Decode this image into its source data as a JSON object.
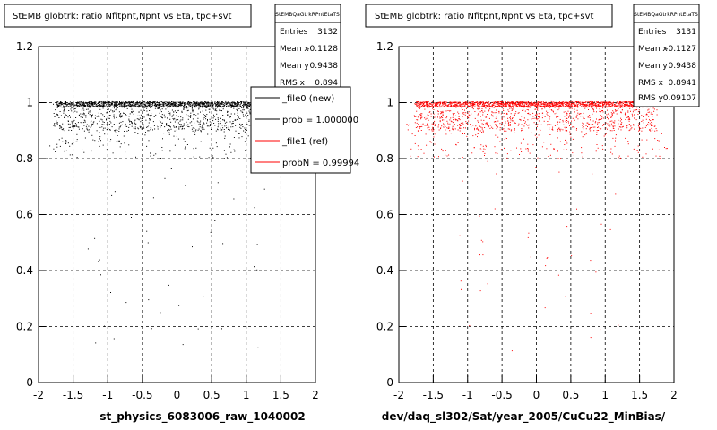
{
  "colors": {
    "background": "#ffffff",
    "frame": "#000000",
    "grid": "#000000",
    "series_new": "#000000",
    "series_ref": "#ff0000"
  },
  "footer": {
    "text": "..."
  },
  "chart_data": [
    {
      "type": "scatter",
      "title": "StEMB globtrk: ratio Nfitpnt,Npnt vs Eta, tpc+svt",
      "xlabel": "st_physics_6083006_raw_1040002",
      "ylabel": "",
      "xlim": [
        -2,
        2
      ],
      "ylim": [
        0,
        1.2
      ],
      "xticks": [
        "-2",
        "-1.5",
        "-1",
        "-0.5",
        "0",
        "0.5",
        "1",
        "1.5",
        "2"
      ],
      "yticks": [
        "0",
        "0.2",
        "0.4",
        "0.6",
        "0.8",
        "1",
        "1.2"
      ],
      "grid": true,
      "point_color": "#000000",
      "points_note": "dense band between y≈0.85 and 1.0 for x in [-1.8, 1.8], sparse points down to y≈0.1",
      "stats": {
        "title": "StEMBQaGtrkRPntEtaTS",
        "rows": [
          {
            "label": "Entries",
            "value": "3132"
          },
          {
            "label": "Mean x",
            "value": "-0.1128"
          },
          {
            "label": "Mean y",
            "value": "0.9438"
          },
          {
            "label": "RMS x",
            "value": "0.894"
          }
        ]
      },
      "legend": {
        "placement": "top-right",
        "entries": [
          {
            "label": "_file0 (new)",
            "color": "#000000"
          },
          {
            "label": "prob = 1.000000",
            "color": "#000000"
          },
          {
            "label": "_file1 (ref)",
            "color": "#ff0000"
          },
          {
            "label": "probN = 0.99994",
            "color": "#ff0000"
          }
        ]
      }
    },
    {
      "type": "scatter",
      "title": "StEMB globtrk: ratio Nfitpnt,Npnt vs Eta, tpc+svt",
      "xlabel": "dev/daq_sl302/Sat/year_2005/CuCu22_MinBias/",
      "ylabel": "",
      "xlim": [
        -2,
        2
      ],
      "ylim": [
        0,
        1.2
      ],
      "xticks": [
        "-2",
        "-1.5",
        "-1",
        "-0.5",
        "0",
        "0.5",
        "1",
        "1.5",
        "2"
      ],
      "yticks": [
        "0",
        "0.2",
        "0.4",
        "0.6",
        "0.8",
        "1",
        "1.2"
      ],
      "grid": true,
      "point_color": "#ff0000",
      "points_note": "dense band between y≈0.85 and 1.0 for x in [-1.8, 1.8], sparse points down to y≈0.1",
      "stats": {
        "title": "StEMBQaGtrkRPntEtaTS",
        "rows": [
          {
            "label": "Entries",
            "value": "3131"
          },
          {
            "label": "Mean x",
            "value": "-0.1127"
          },
          {
            "label": "Mean y",
            "value": "0.9438"
          },
          {
            "label": "RMS x",
            "value": "0.8941"
          },
          {
            "label": "RMS y",
            "value": "0.09107"
          }
        ]
      }
    }
  ]
}
